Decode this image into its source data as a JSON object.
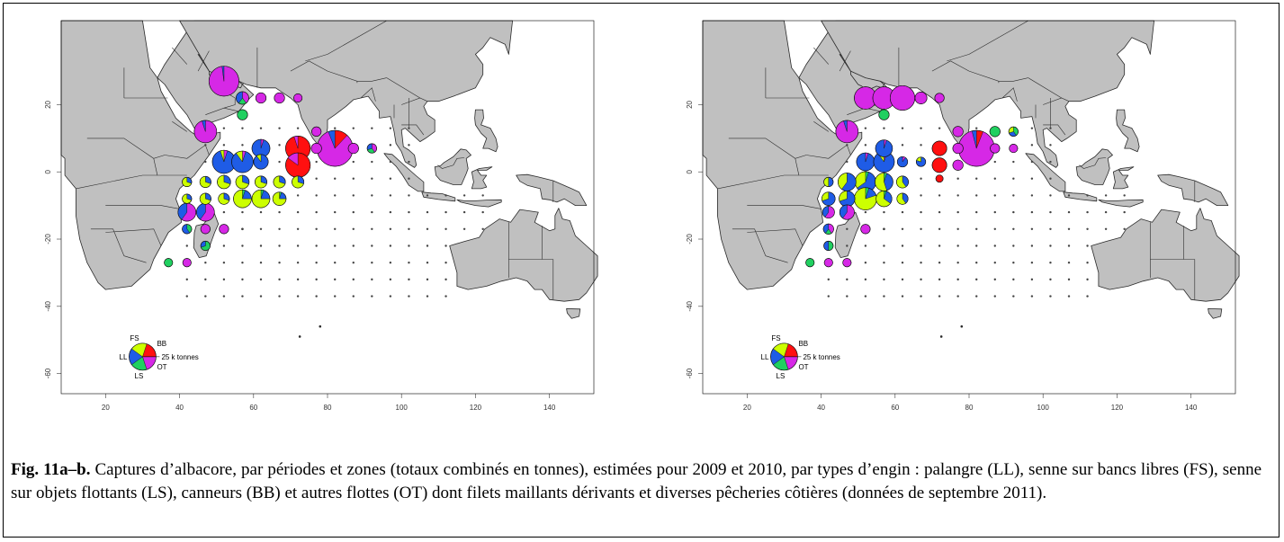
{
  "figure": {
    "caption_label": "Fig. 11a–b.",
    "caption_text": "Captures d’albacore, par périodes et zones (totaux combinés en tonnes), estimées pour 2009 et 2010, par types d’engin : palangre (LL), senne sur bancs libres (FS), senne sur objets flottants (LS), canneurs (BB) et autres flottes (OT) dont filets maillants dérivants et diverses pêcheries côtières (données de septembre 2011)."
  },
  "axes": {
    "x_ticks": [
      20,
      40,
      60,
      80,
      100,
      120,
      140
    ],
    "y_ticks": [
      20,
      0,
      -20,
      -40,
      -60
    ],
    "xlim": [
      8,
      152
    ],
    "ylim": [
      -66,
      45
    ]
  },
  "legend": {
    "labels": {
      "FS": "FS",
      "BB": "BB",
      "LL": "LL",
      "OT": "OT",
      "LS": "LS"
    },
    "scale_text": "25 k tonnes",
    "scale_value": 25000
  },
  "colors": {
    "land": "#c0c0c0",
    "border": "#2a2a2a",
    "LL": "#1f5ce6",
    "FS": "#ccff00",
    "LS": "#20d060",
    "BB": "#ff1010",
    "OT": "#d628e6"
  },
  "chart_data": [
    {
      "type": "pie-map",
      "panel": "a",
      "unit": "tonnes",
      "gears": [
        "LL",
        "FS",
        "LS",
        "BB",
        "OT"
      ],
      "cells": [
        {
          "lon": 52,
          "lat": 27,
          "total": 25000,
          "LL": 0.02,
          "FS": 0,
          "LS": 0,
          "BB": 0,
          "OT": 0.98
        },
        {
          "lon": 47,
          "lat": 12,
          "total": 14000,
          "LL": 0.05,
          "FS": 0,
          "LS": 0,
          "BB": 0,
          "OT": 0.95
        },
        {
          "lon": 82,
          "lat": 7,
          "total": 36000,
          "LL": 0.06,
          "FS": 0,
          "LS": 0,
          "BB": 0.12,
          "OT": 0.82
        },
        {
          "lon": 72,
          "lat": 7,
          "total": 17000,
          "LL": 0,
          "FS": 0,
          "LS": 0,
          "BB": 0.95,
          "OT": 0.05
        },
        {
          "lon": 72,
          "lat": 2,
          "total": 17000,
          "LL": 0,
          "FS": 0,
          "LS": 0,
          "BB": 0.85,
          "OT": 0.15
        },
        {
          "lon": 52,
          "lat": 3,
          "total": 15000,
          "LL": 0.9,
          "FS": 0.05,
          "LS": 0,
          "BB": 0,
          "OT": 0.05
        },
        {
          "lon": 57,
          "lat": 3,
          "total": 13000,
          "LL": 0.85,
          "FS": 0.1,
          "LS": 0,
          "BB": 0,
          "OT": 0.05
        },
        {
          "lon": 62,
          "lat": 7,
          "total": 9000,
          "LL": 0.95,
          "FS": 0,
          "LS": 0,
          "BB": 0,
          "OT": 0.05
        },
        {
          "lon": 62,
          "lat": 3,
          "total": 6000,
          "LL": 0.9,
          "FS": 0.1,
          "LS": 0,
          "BB": 0,
          "OT": 0
        },
        {
          "lon": 57,
          "lat": -8,
          "total": 9000,
          "LL": 0.2,
          "FS": 0.75,
          "LS": 0.05,
          "BB": 0,
          "OT": 0
        },
        {
          "lon": 62,
          "lat": -8,
          "total": 9000,
          "LL": 0.2,
          "FS": 0.75,
          "LS": 0.05,
          "BB": 0,
          "OT": 0
        },
        {
          "lon": 67,
          "lat": -8,
          "total": 5000,
          "LL": 0.2,
          "FS": 0.75,
          "LS": 0.05,
          "BB": 0,
          "OT": 0
        },
        {
          "lon": 42,
          "lat": -12,
          "total": 9000,
          "LL": 0.4,
          "FS": 0,
          "LS": 0,
          "BB": 0,
          "OT": 0.6
        },
        {
          "lon": 47,
          "lat": -12,
          "total": 9000,
          "LL": 0.4,
          "FS": 0,
          "LS": 0,
          "BB": 0,
          "OT": 0.6
        },
        {
          "lon": 52,
          "lat": -3,
          "total": 5000,
          "LL": 0.3,
          "FS": 0.7,
          "LS": 0,
          "BB": 0,
          "OT": 0
        },
        {
          "lon": 57,
          "lat": -3,
          "total": 5000,
          "LL": 0.3,
          "FS": 0.7,
          "LS": 0,
          "BB": 0,
          "OT": 0
        },
        {
          "lon": 62,
          "lat": -3,
          "total": 4000,
          "LL": 0.3,
          "FS": 0.7,
          "LS": 0,
          "BB": 0,
          "OT": 0
        },
        {
          "lon": 67,
          "lat": -3,
          "total": 4000,
          "LL": 0.3,
          "FS": 0.7,
          "LS": 0,
          "BB": 0,
          "OT": 0
        },
        {
          "lon": 72,
          "lat": -3,
          "total": 4000,
          "LL": 0.3,
          "FS": 0.7,
          "LS": 0,
          "BB": 0,
          "OT": 0
        },
        {
          "lon": 47,
          "lat": -3,
          "total": 3500,
          "LL": 0.3,
          "FS": 0.7,
          "LS": 0,
          "BB": 0,
          "OT": 0
        },
        {
          "lon": 42,
          "lat": -3,
          "total": 2500,
          "LL": 0.3,
          "FS": 0.7,
          "LS": 0,
          "BB": 0,
          "OT": 0
        },
        {
          "lon": 52,
          "lat": -8,
          "total": 3500,
          "LL": 0.3,
          "FS": 0.7,
          "LS": 0,
          "BB": 0,
          "OT": 0
        },
        {
          "lon": 47,
          "lat": -8,
          "total": 3500,
          "LL": 0.3,
          "FS": 0.7,
          "LS": 0,
          "BB": 0,
          "OT": 0
        },
        {
          "lon": 42,
          "lat": -8,
          "total": 2500,
          "LL": 0.3,
          "FS": 0.7,
          "LS": 0,
          "BB": 0,
          "OT": 0
        },
        {
          "lon": 57,
          "lat": 22,
          "total": 4500,
          "LL": 0.4,
          "FS": 0,
          "LS": 0.2,
          "BB": 0,
          "OT": 0.4
        },
        {
          "lon": 62,
          "lat": 22,
          "total": 3000,
          "LL": 0,
          "FS": 0,
          "LS": 0,
          "BB": 0,
          "OT": 1
        },
        {
          "lon": 67,
          "lat": 22,
          "total": 3000,
          "LL": 0,
          "FS": 0,
          "LS": 0,
          "BB": 0,
          "OT": 1
        },
        {
          "lon": 72,
          "lat": 22,
          "total": 2000,
          "LL": 0,
          "FS": 0,
          "LS": 0,
          "BB": 0,
          "OT": 1
        },
        {
          "lon": 57,
          "lat": 17,
          "total": 3000,
          "LL": 0,
          "FS": 0,
          "LS": 1,
          "BB": 0,
          "OT": 0
        },
        {
          "lon": 87,
          "lat": 7,
          "total": 3000,
          "LL": 0,
          "FS": 0,
          "LS": 0,
          "BB": 0,
          "OT": 1
        },
        {
          "lon": 77,
          "lat": 7,
          "total": 3000,
          "LL": 0,
          "FS": 0,
          "LS": 0,
          "BB": 0,
          "OT": 1
        },
        {
          "lon": 77,
          "lat": 12,
          "total": 2500,
          "LL": 0,
          "FS": 0,
          "LS": 0,
          "BB": 0,
          "OT": 1
        },
        {
          "lon": 92,
          "lat": 7,
          "total": 2500,
          "LL": 0.3,
          "FS": 0,
          "LS": 0.3,
          "BB": 0,
          "OT": 0.4
        },
        {
          "lon": 52,
          "lat": -17,
          "total": 2500,
          "LL": 0,
          "FS": 0,
          "LS": 0,
          "BB": 0,
          "OT": 1
        },
        {
          "lon": 47,
          "lat": -17,
          "total": 2500,
          "LL": 0,
          "FS": 0,
          "LS": 0,
          "BB": 0,
          "OT": 1
        },
        {
          "lon": 47,
          "lat": -22,
          "total": 2500,
          "LL": 0.3,
          "FS": 0,
          "LS": 0.7,
          "BB": 0,
          "OT": 0
        },
        {
          "lon": 42,
          "lat": -27,
          "total": 2000,
          "LL": 0,
          "FS": 0,
          "LS": 0,
          "BB": 0,
          "OT": 1
        },
        {
          "lon": 37,
          "lat": -27,
          "total": 2000,
          "LL": 0,
          "FS": 0,
          "LS": 1,
          "BB": 0,
          "OT": 0
        },
        {
          "lon": 42,
          "lat": -17,
          "total": 2500,
          "LL": 0.6,
          "FS": 0,
          "LS": 0.4,
          "BB": 0,
          "OT": 0
        }
      ]
    },
    {
      "type": "pie-map",
      "panel": "b",
      "unit": "tonnes",
      "gears": [
        "LL",
        "FS",
        "LS",
        "BB",
        "OT"
      ],
      "cells": [
        {
          "lon": 52,
          "lat": 22,
          "total": 14000,
          "LL": 0,
          "FS": 0,
          "LS": 0,
          "BB": 0,
          "OT": 1
        },
        {
          "lon": 57,
          "lat": 22,
          "total": 14000,
          "LL": 0,
          "FS": 0,
          "LS": 0,
          "BB": 0,
          "OT": 1
        },
        {
          "lon": 62,
          "lat": 22,
          "total": 17000,
          "LL": 0,
          "FS": 0,
          "LS": 0,
          "BB": 0,
          "OT": 1
        },
        {
          "lon": 67,
          "lat": 22,
          "total": 4000,
          "LL": 0,
          "FS": 0,
          "LS": 0,
          "BB": 0,
          "OT": 1
        },
        {
          "lon": 72,
          "lat": 22,
          "total": 2500,
          "LL": 0,
          "FS": 0,
          "LS": 0,
          "BB": 0,
          "OT": 1
        },
        {
          "lon": 47,
          "lat": 12,
          "total": 14000,
          "LL": 0.05,
          "FS": 0,
          "LS": 0,
          "BB": 0,
          "OT": 0.95
        },
        {
          "lon": 82,
          "lat": 7,
          "total": 36000,
          "LL": 0.04,
          "FS": 0,
          "LS": 0,
          "BB": 0.06,
          "OT": 0.9
        },
        {
          "lon": 72,
          "lat": 7,
          "total": 6000,
          "LL": 0,
          "FS": 0,
          "LS": 0,
          "BB": 1,
          "OT": 0
        },
        {
          "lon": 72,
          "lat": 2,
          "total": 6000,
          "LL": 0,
          "FS": 0,
          "LS": 0,
          "BB": 1,
          "OT": 0
        },
        {
          "lon": 72,
          "lat": -2,
          "total": 1500,
          "LL": 0,
          "FS": 0,
          "LS": 0,
          "BB": 1,
          "OT": 0
        },
        {
          "lon": 52,
          "lat": 3,
          "total": 9000,
          "LL": 0.95,
          "FS": 0,
          "LS": 0,
          "BB": 0,
          "OT": 0.05
        },
        {
          "lon": 57,
          "lat": 3,
          "total": 12000,
          "LL": 0.85,
          "FS": 0.1,
          "LS": 0,
          "BB": 0,
          "OT": 0.05
        },
        {
          "lon": 57,
          "lat": 7,
          "total": 8000,
          "LL": 0.95,
          "FS": 0,
          "LS": 0,
          "BB": 0,
          "OT": 0.05
        },
        {
          "lon": 52,
          "lat": -3,
          "total": 12000,
          "LL": 0.6,
          "FS": 0.35,
          "LS": 0.05,
          "BB": 0,
          "OT": 0
        },
        {
          "lon": 57,
          "lat": -3,
          "total": 9000,
          "LL": 0.4,
          "FS": 0.55,
          "LS": 0.05,
          "BB": 0,
          "OT": 0
        },
        {
          "lon": 47,
          "lat": -3,
          "total": 9000,
          "LL": 0.6,
          "FS": 0.4,
          "LS": 0,
          "BB": 0,
          "OT": 0
        },
        {
          "lon": 52,
          "lat": -8,
          "total": 14000,
          "LL": 0.15,
          "FS": 0.8,
          "LS": 0.05,
          "BB": 0,
          "OT": 0
        },
        {
          "lon": 57,
          "lat": -8,
          "total": 7000,
          "LL": 0.3,
          "FS": 0.65,
          "LS": 0.05,
          "BB": 0,
          "OT": 0
        },
        {
          "lon": 47,
          "lat": -8,
          "total": 7000,
          "LL": 0.7,
          "FS": 0.3,
          "LS": 0,
          "BB": 0,
          "OT": 0
        },
        {
          "lon": 42,
          "lat": -8,
          "total": 5000,
          "LL": 0.7,
          "FS": 0.3,
          "LS": 0,
          "BB": 0,
          "OT": 0
        },
        {
          "lon": 62,
          "lat": -3,
          "total": 4000,
          "LL": 0.4,
          "FS": 0.6,
          "LS": 0,
          "BB": 0,
          "OT": 0
        },
        {
          "lon": 62,
          "lat": -8,
          "total": 3500,
          "LL": 0.4,
          "FS": 0.6,
          "LS": 0,
          "BB": 0,
          "OT": 0
        },
        {
          "lon": 42,
          "lat": -3,
          "total": 2500,
          "LL": 0.5,
          "FS": 0.5,
          "LS": 0,
          "BB": 0,
          "OT": 0
        },
        {
          "lon": 62,
          "lat": 3,
          "total": 3000,
          "LL": 0.9,
          "FS": 0,
          "LS": 0,
          "BB": 0,
          "OT": 0.1
        },
        {
          "lon": 67,
          "lat": 3,
          "total": 2500,
          "LL": 0.8,
          "FS": 0.2,
          "LS": 0,
          "BB": 0,
          "OT": 0
        },
        {
          "lon": 47,
          "lat": -12,
          "total": 6000,
          "LL": 0.4,
          "FS": 0,
          "LS": 0,
          "BB": 0,
          "OT": 0.6
        },
        {
          "lon": 42,
          "lat": -12,
          "total": 4000,
          "LL": 0.4,
          "FS": 0,
          "LS": 0,
          "BB": 0,
          "OT": 0.6
        },
        {
          "lon": 42,
          "lat": -17,
          "total": 3000,
          "LL": 0.4,
          "FS": 0,
          "LS": 0.2,
          "BB": 0,
          "OT": 0.4
        },
        {
          "lon": 42,
          "lat": -22,
          "total": 2500,
          "LL": 0.5,
          "FS": 0,
          "LS": 0.5,
          "BB": 0,
          "OT": 0
        },
        {
          "lon": 57,
          "lat": 17,
          "total": 3000,
          "LL": 0,
          "FS": 0,
          "LS": 1,
          "BB": 0,
          "OT": 0
        },
        {
          "lon": 87,
          "lat": 12,
          "total": 3000,
          "LL": 0,
          "FS": 0,
          "LS": 1,
          "BB": 0,
          "OT": 0
        },
        {
          "lon": 92,
          "lat": 12,
          "total": 2500,
          "LL": 0.3,
          "FS": 0.3,
          "LS": 0.4,
          "BB": 0,
          "OT": 0
        },
        {
          "lon": 77,
          "lat": 12,
          "total": 3000,
          "LL": 0,
          "FS": 0,
          "LS": 0,
          "BB": 0,
          "OT": 1
        },
        {
          "lon": 77,
          "lat": 7,
          "total": 3000,
          "LL": 0,
          "FS": 0,
          "LS": 0,
          "BB": 0,
          "OT": 1
        },
        {
          "lon": 77,
          "lat": 2,
          "total": 3000,
          "LL": 0,
          "FS": 0,
          "LS": 0,
          "BB": 0,
          "OT": 1
        },
        {
          "lon": 87,
          "lat": 7,
          "total": 2500,
          "LL": 0,
          "FS": 0,
          "LS": 0,
          "BB": 0,
          "OT": 1
        },
        {
          "lon": 92,
          "lat": 7,
          "total": 2000,
          "LL": 0,
          "FS": 0,
          "LS": 0,
          "BB": 0,
          "OT": 1
        },
        {
          "lon": 52,
          "lat": -17,
          "total": 2500,
          "LL": 0,
          "FS": 0,
          "LS": 0,
          "BB": 0,
          "OT": 1
        },
        {
          "lon": 42,
          "lat": -27,
          "total": 2000,
          "LL": 0,
          "FS": 0,
          "LS": 0,
          "BB": 0,
          "OT": 1
        },
        {
          "lon": 37,
          "lat": -27,
          "total": 2000,
          "LL": 0,
          "FS": 0,
          "LS": 1,
          "BB": 0,
          "OT": 0
        },
        {
          "lon": 47,
          "lat": -27,
          "total": 2000,
          "LL": 0,
          "FS": 0,
          "LS": 0,
          "BB": 0,
          "OT": 1
        }
      ]
    }
  ]
}
